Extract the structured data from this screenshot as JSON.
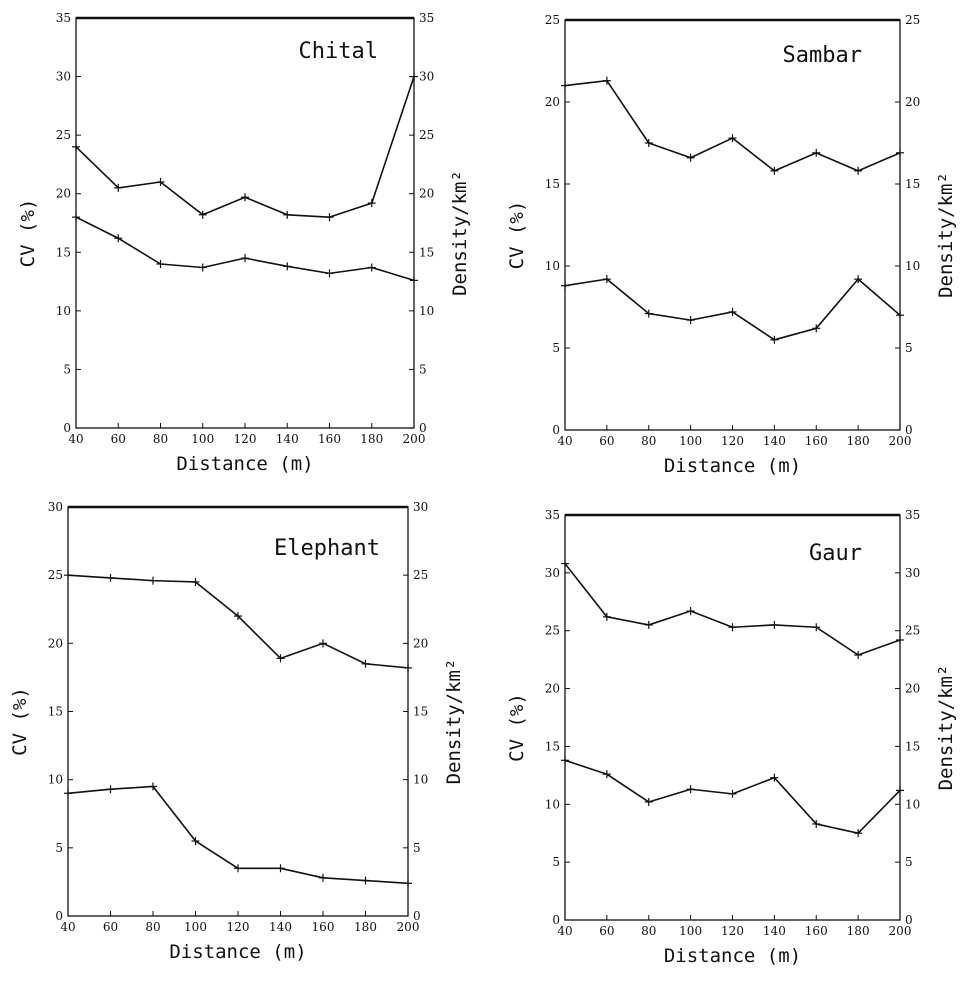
{
  "chart_data": [
    {
      "type": "line",
      "title": "Chital",
      "xlabel": "Distance (m)",
      "ylabel": "CV (%)",
      "y2label": "Density/km²",
      "x": [
        40,
        60,
        80,
        100,
        120,
        140,
        160,
        180,
        200
      ],
      "xticks": [
        40,
        60,
        80,
        100,
        120,
        140,
        160,
        180,
        200
      ],
      "xlim": [
        40,
        200
      ],
      "ylim": [
        0,
        35
      ],
      "yticks": [
        0,
        5,
        10,
        15,
        20,
        25,
        30,
        35
      ],
      "y2lim": [
        0,
        35
      ],
      "y2ticks": [
        0,
        5,
        10,
        15,
        20,
        25,
        30,
        35
      ],
      "series": [
        {
          "axis": "right",
          "values": [
            24.0,
            20.5,
            21.0,
            18.2,
            19.7,
            18.2,
            18.0,
            19.2,
            30.0
          ]
        },
        {
          "axis": "left",
          "values": [
            18.0,
            16.2,
            14.0,
            13.7,
            14.5,
            13.8,
            13.2,
            13.7,
            12.6
          ]
        }
      ]
    },
    {
      "type": "line",
      "title": "Sambar",
      "xlabel": "Distance (m)",
      "ylabel": "CV (%)",
      "y2label": "Density/km²",
      "x": [
        40,
        60,
        80,
        100,
        120,
        140,
        160,
        180,
        200
      ],
      "xticks": [
        40,
        60,
        80,
        100,
        120,
        140,
        160,
        180,
        200
      ],
      "xlim": [
        40,
        200
      ],
      "ylim": [
        0,
        25
      ],
      "yticks": [
        0,
        5,
        10,
        15,
        20,
        25
      ],
      "y2lim": [
        0,
        25
      ],
      "y2ticks": [
        0,
        5,
        10,
        15,
        20,
        25
      ],
      "series": [
        {
          "axis": "right",
          "values": [
            21.0,
            21.3,
            17.5,
            16.6,
            17.8,
            15.8,
            16.9,
            15.8,
            16.9
          ]
        },
        {
          "axis": "left",
          "values": [
            8.8,
            9.2,
            7.1,
            6.7,
            7.2,
            5.5,
            6.2,
            9.2,
            7.0
          ]
        }
      ]
    },
    {
      "type": "line",
      "title": "Elephant",
      "xlabel": "Distance (m)",
      "ylabel": "CV (%)",
      "y2label": "Density/km²",
      "x": [
        40,
        60,
        80,
        100,
        120,
        140,
        160,
        180,
        200
      ],
      "xticks": [
        40,
        60,
        80,
        100,
        120,
        140,
        160,
        180,
        200
      ],
      "xlim": [
        40,
        200
      ],
      "ylim": [
        0,
        30
      ],
      "yticks": [
        0,
        5,
        10,
        15,
        20,
        25,
        30
      ],
      "y2lim": [
        0,
        30
      ],
      "y2ticks": [
        0,
        5,
        10,
        15,
        20,
        25,
        30
      ],
      "series": [
        {
          "axis": "right",
          "values": [
            25.0,
            24.8,
            24.6,
            24.5,
            22.0,
            18.9,
            20.0,
            18.5,
            18.2
          ]
        },
        {
          "axis": "left",
          "values": [
            9.0,
            9.3,
            9.5,
            5.5,
            3.5,
            3.5,
            2.8,
            2.6,
            2.4
          ]
        }
      ]
    },
    {
      "type": "line",
      "title": "Gaur",
      "xlabel": "Distance (m)",
      "ylabel": "CV (%)",
      "y2label": "Density/km²",
      "x": [
        40,
        60,
        80,
        100,
        120,
        140,
        160,
        180,
        200
      ],
      "xticks": [
        40,
        60,
        80,
        100,
        120,
        140,
        160,
        180,
        200
      ],
      "xlim": [
        40,
        200
      ],
      "ylim": [
        0,
        35
      ],
      "yticks": [
        0,
        5,
        10,
        15,
        20,
        25,
        30,
        35
      ],
      "y2lim": [
        0,
        35
      ],
      "y2ticks": [
        0,
        5,
        10,
        15,
        20,
        25,
        30,
        35
      ],
      "series": [
        {
          "axis": "right",
          "values": [
            30.8,
            26.2,
            25.5,
            26.7,
            25.3,
            25.5,
            25.3,
            22.9,
            24.2
          ]
        },
        {
          "axis": "left",
          "values": [
            13.8,
            12.6,
            10.2,
            11.3,
            10.9,
            12.3,
            8.3,
            7.5,
            11.2
          ]
        }
      ]
    }
  ]
}
